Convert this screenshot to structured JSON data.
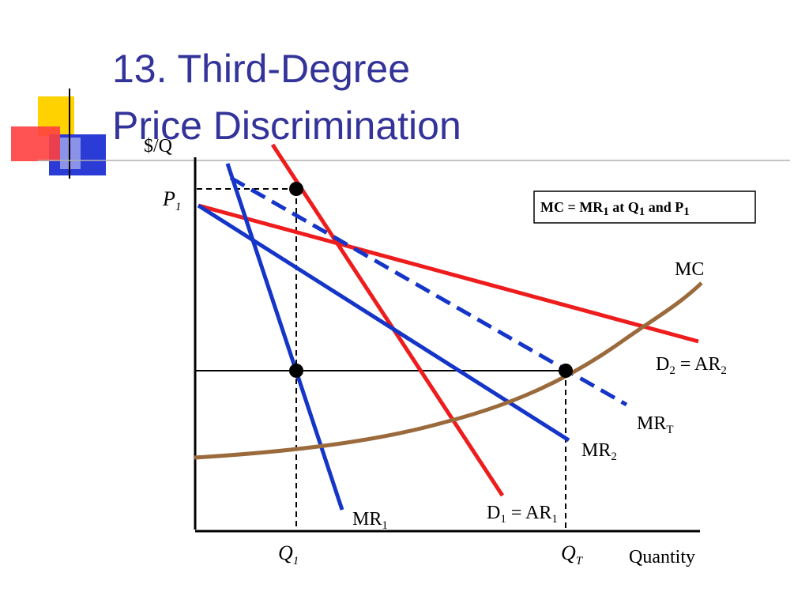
{
  "title": {
    "line1": "13. Third-Degree",
    "line2": "Price Discrimination"
  },
  "colors": {
    "title": "#33339a",
    "demand": "#ee1c1c",
    "marginal_revenue": "#1535c8",
    "marginal_cost": "#9b6a3c",
    "axis": "#000000",
    "deco_yellow": "#ffd200",
    "deco_red": "#ff4040",
    "deco_blue": "#2a3bd6"
  },
  "axes": {
    "y_label": "$/Q",
    "x_label": "Quantity"
  },
  "labels": {
    "p1": {
      "main": "P",
      "sub": "1"
    },
    "q1": {
      "main": "Q",
      "sub": "1"
    },
    "qt": {
      "main": "Q",
      "sub": "T"
    },
    "mc": "MC",
    "d2": {
      "a": "D",
      "a_sub": "2",
      "b": " = AR",
      "b_sub": "2"
    },
    "d1": {
      "a": "D",
      "a_sub": "1",
      "b": " = AR",
      "b_sub": "1"
    },
    "mrt": {
      "main": "MR",
      "sub": "T"
    },
    "mr2": {
      "main": "MR",
      "sub": "2"
    },
    "mr1": {
      "main": "MR",
      "sub": "1"
    }
  },
  "note": {
    "p1": "MC = MR",
    "s1": "1",
    "p2": " at Q",
    "s2": "1",
    "p3": " and P",
    "s3": "1"
  },
  "curves": [
    {
      "name": "D2 = AR2",
      "kind": "demand",
      "style": "solid"
    },
    {
      "name": "D1 = AR1",
      "kind": "demand",
      "style": "solid"
    },
    {
      "name": "MR1",
      "kind": "marginal revenue",
      "style": "solid"
    },
    {
      "name": "MR2",
      "kind": "marginal revenue",
      "style": "solid"
    },
    {
      "name": "MRT",
      "kind": "marginal revenue",
      "style": "dashed"
    },
    {
      "name": "MC",
      "kind": "marginal cost",
      "style": "solid"
    }
  ],
  "points": [
    {
      "name": "P1 at Q1 on D1"
    },
    {
      "name": "MR1 = MC level at Q1"
    },
    {
      "name": "MRT = MC at QT"
    }
  ]
}
